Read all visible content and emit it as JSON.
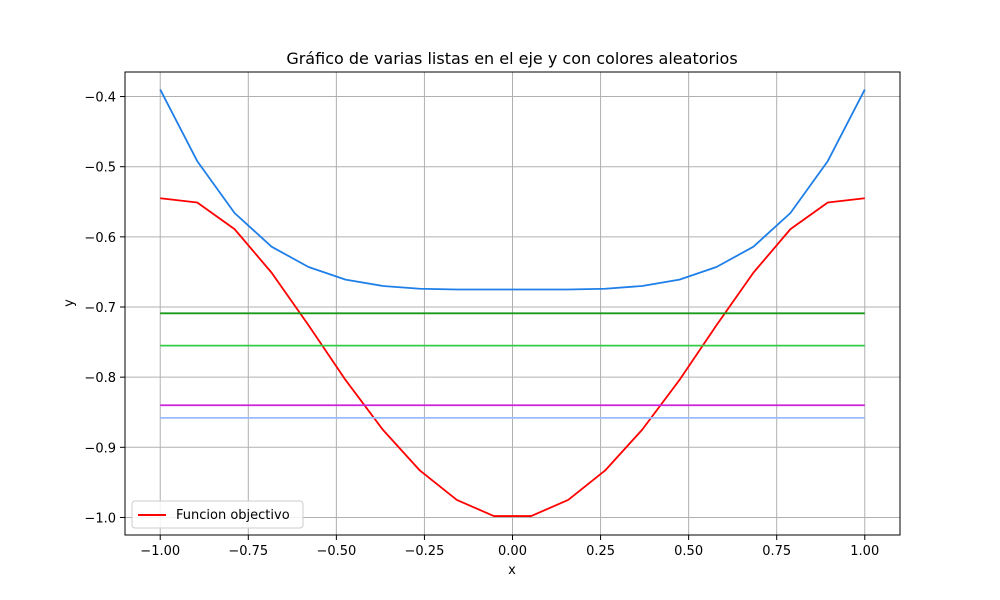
{
  "chart_data": {
    "type": "line",
    "title": "Gráfico de varias listas en el eje y con colores aleatorios",
    "xlabel": "x",
    "ylabel": "y",
    "xlim": [
      -1.1,
      1.1
    ],
    "ylim": [
      -1.025,
      -0.365
    ],
    "xticks": [
      -1.0,
      -0.75,
      -0.5,
      -0.25,
      0.0,
      0.25,
      0.5,
      0.75,
      1.0
    ],
    "xtick_labels": [
      "−1.00",
      "−0.75",
      "−0.50",
      "−0.25",
      "0.00",
      "0.25",
      "0.50",
      "0.75",
      "1.00"
    ],
    "yticks": [
      -1.0,
      -0.9,
      -0.8,
      -0.7,
      -0.6,
      -0.5,
      -0.4
    ],
    "ytick_labels": [
      "−1.0",
      "−0.9",
      "−0.8",
      "−0.7",
      "−0.6",
      "−0.5",
      "−0.4"
    ],
    "grid": true,
    "legend_position": "lower-left",
    "x": [
      -1.0,
      -0.895,
      -0.789,
      -0.684,
      -0.579,
      -0.474,
      -0.368,
      -0.263,
      -0.158,
      -0.053,
      0.053,
      0.158,
      0.263,
      0.368,
      0.474,
      0.579,
      0.684,
      0.789,
      0.895,
      1.0
    ],
    "series": [
      {
        "name": "Funcion objectivo",
        "color": "#ff0000",
        "values": [
          -0.545,
          -0.551,
          -0.589,
          -0.651,
          -0.726,
          -0.804,
          -0.875,
          -0.933,
          -0.975,
          -0.998,
          -0.998,
          -0.975,
          -0.933,
          -0.875,
          -0.804,
          -0.726,
          -0.651,
          -0.589,
          -0.551,
          -0.545
        ]
      },
      {
        "color": "#1f7fe8",
        "values": [
          -0.39,
          -0.492,
          -0.566,
          -0.614,
          -0.643,
          -0.661,
          -0.67,
          -0.674,
          -0.675,
          -0.675,
          -0.675,
          -0.675,
          -0.674,
          -0.67,
          -0.661,
          -0.643,
          -0.614,
          -0.566,
          -0.492,
          -0.39
        ]
      },
      {
        "color": "#1a9a1a",
        "values": [
          -0.709,
          -0.709,
          -0.709,
          -0.709,
          -0.709,
          -0.709,
          -0.709,
          -0.709,
          -0.709,
          -0.709,
          -0.709,
          -0.709,
          -0.709,
          -0.709,
          -0.709,
          -0.709,
          -0.709,
          -0.709,
          -0.709,
          -0.709
        ]
      },
      {
        "color": "#33cc44",
        "values": [
          -0.755,
          -0.755,
          -0.755,
          -0.755,
          -0.755,
          -0.755,
          -0.755,
          -0.755,
          -0.755,
          -0.755,
          -0.755,
          -0.755,
          -0.755,
          -0.755,
          -0.755,
          -0.755,
          -0.755,
          -0.755,
          -0.755,
          -0.755
        ]
      },
      {
        "color": "#cc22dd",
        "values": [
          -0.84,
          -0.84,
          -0.84,
          -0.84,
          -0.84,
          -0.84,
          -0.84,
          -0.84,
          -0.84,
          -0.84,
          -0.84,
          -0.84,
          -0.84,
          -0.84,
          -0.84,
          -0.84,
          -0.84,
          -0.84,
          -0.84,
          -0.84
        ]
      },
      {
        "color": "#99bbff",
        "values": [
          -0.858,
          -0.858,
          -0.858,
          -0.858,
          -0.858,
          -0.858,
          -0.858,
          -0.858,
          -0.858,
          -0.858,
          -0.858,
          -0.858,
          -0.858,
          -0.858,
          -0.858,
          -0.858,
          -0.858,
          -0.858,
          -0.858,
          -0.858
        ]
      }
    ]
  }
}
